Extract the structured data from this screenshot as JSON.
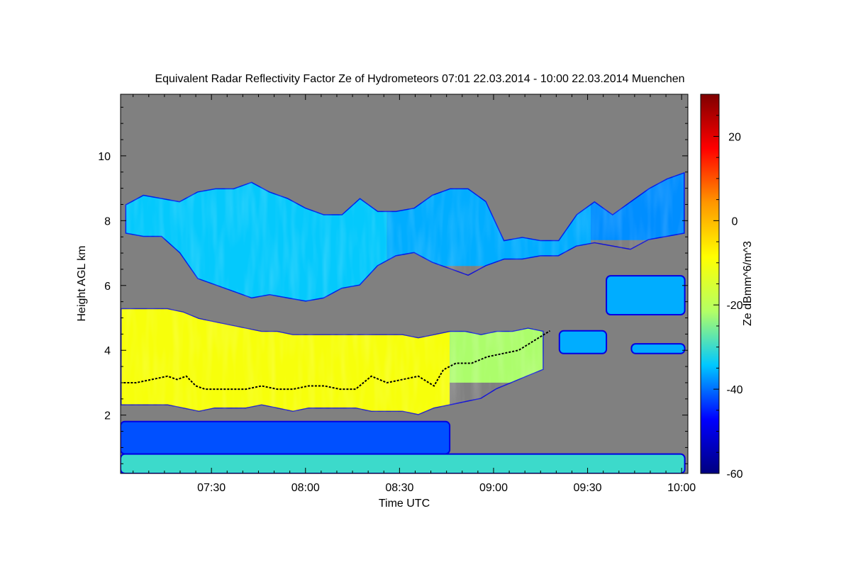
{
  "chart_data": {
    "type": "heatmap",
    "title": "Equivalent Radar Reflectivity Factor Ze of Hydrometeors   07:01 22.03.2014 - 10:00 22.03.2014 Muenchen",
    "xlabel": "Time UTC",
    "ylabel": "Height AGL km",
    "x_range_utc": [
      "07:01",
      "10:00"
    ],
    "xticks": [
      {
        "minutes": 30,
        "label": "07:30"
      },
      {
        "minutes": 60,
        "label": "08:00"
      },
      {
        "minutes": 90,
        "label": "08:30"
      },
      {
        "minutes": 120,
        "label": "09:00"
      },
      {
        "minutes": 150,
        "label": "09:30"
      },
      {
        "minutes": 180,
        "label": "10:00"
      }
    ],
    "ylim_km": [
      0.2,
      11.9
    ],
    "yticks": [
      {
        "value": 2,
        "label": "2"
      },
      {
        "value": 4,
        "label": "4"
      },
      {
        "value": 6,
        "label": "6"
      },
      {
        "value": 8,
        "label": "8"
      },
      {
        "value": 10,
        "label": "10"
      }
    ],
    "colorbar": {
      "label": "Ze dBmm^6/m^3",
      "range": [
        -60,
        30
      ],
      "ticks": [
        {
          "value": -60,
          "label": "-60"
        },
        {
          "value": -40,
          "label": "-40"
        },
        {
          "value": -20,
          "label": "-20"
        },
        {
          "value": 0,
          "label": "0"
        },
        {
          "value": 20,
          "label": "20"
        }
      ],
      "colors": [
        "#00007f",
        "#0000ff",
        "#00c8ff",
        "#b4ff64",
        "#ffff00",
        "#ff9600",
        "#ff0000",
        "#7f0000"
      ]
    },
    "background_color": "#808080",
    "layers": [
      {
        "name": "upper ice cloud",
        "segments": [
          {
            "start_min": 1.5,
            "end_min": 85,
            "base_km": 5.5,
            "top_km": 9.2,
            "ze_dbz": -34
          },
          {
            "start_min": 85,
            "end_min": 150,
            "base_km": 6.6,
            "top_km": 9.0,
            "ze_dbz": -36
          },
          {
            "start_min": 150,
            "end_min": 180,
            "base_km": 7.4,
            "top_km": 9.6,
            "ze_dbz": -38
          }
        ],
        "top_km": [
          8.5,
          8.8,
          8.7,
          8.6,
          8.9,
          9.0,
          9.0,
          9.2,
          8.9,
          8.7,
          8.4,
          8.2,
          8.2,
          8.7,
          8.3,
          8.3,
          8.4,
          8.8,
          9.0,
          9.0,
          8.6,
          7.4,
          7.5,
          7.4,
          7.4,
          8.2,
          8.6,
          8.2,
          8.6,
          9.0,
          9.3,
          9.5
        ],
        "base_km": [
          7.6,
          7.5,
          7.5,
          7.0,
          6.2,
          6.0,
          5.8,
          5.6,
          5.7,
          5.6,
          5.5,
          5.6,
          5.9,
          6.0,
          6.6,
          6.9,
          7.0,
          6.7,
          6.5,
          6.3,
          6.6,
          6.8,
          6.8,
          6.9,
          6.9,
          7.2,
          7.3,
          7.2,
          7.1,
          7.4,
          7.5,
          7.6
        ]
      },
      {
        "name": "lower mixed-phase cloud",
        "segments": [
          {
            "start_min": 0,
            "end_min": 105,
            "base_km": 2.0,
            "top_km": 5.3,
            "ze_dbz": -10
          },
          {
            "start_min": 105,
            "end_min": 135,
            "base_km": 3.0,
            "top_km": 4.7,
            "ze_dbz": -22
          }
        ],
        "top_km": [
          5.3,
          5.3,
          5.3,
          5.3,
          5.2,
          5.0,
          4.9,
          4.8,
          4.7,
          4.6,
          4.6,
          4.5,
          4.5,
          4.5,
          4.5,
          4.5,
          4.5,
          4.5,
          4.5,
          4.4,
          4.5,
          4.6,
          4.6,
          4.5,
          4.6,
          4.6,
          4.7,
          4.6
        ],
        "base_km": [
          2.3,
          2.3,
          2.3,
          2.3,
          2.2,
          2.1,
          2.2,
          2.2,
          2.2,
          2.3,
          2.2,
          2.1,
          2.2,
          2.2,
          2.2,
          2.2,
          2.1,
          2.1,
          2.1,
          2.0,
          2.2,
          2.3,
          2.4,
          2.5,
          2.8,
          3.0,
          3.2,
          3.4
        ]
      },
      {
        "name": "isolated echoes near 4-6 km",
        "segments": [
          {
            "start_min": 155,
            "end_min": 180,
            "base_km": 5.1,
            "top_km": 6.3,
            "ze_dbz": -36
          },
          {
            "start_min": 140,
            "end_min": 155,
            "base_km": 3.9,
            "top_km": 4.6,
            "ze_dbz": -36
          },
          {
            "start_min": 163,
            "end_min": 180,
            "base_km": 3.9,
            "top_km": 4.2,
            "ze_dbz": -36
          }
        ]
      },
      {
        "name": "near-surface clutter",
        "segments": [
          {
            "start_min": 0,
            "end_min": 180,
            "base_km": 0.2,
            "top_km": 0.8,
            "ze_dbz": -30
          },
          {
            "start_min": 0,
            "end_min": 105,
            "base_km": 0.8,
            "top_km": 1.8,
            "ze_dbz": -42
          }
        ]
      }
    ],
    "melting_layer_km": {
      "minutes": [
        1,
        5,
        10,
        15,
        18,
        21,
        24,
        27,
        30,
        35,
        40,
        45,
        50,
        55,
        60,
        65,
        70,
        75,
        80,
        85,
        90,
        95,
        100,
        103,
        107,
        112,
        117,
        122,
        127,
        132,
        137
      ],
      "height_km": [
        3.0,
        3.0,
        3.1,
        3.2,
        3.1,
        3.2,
        2.9,
        2.8,
        2.8,
        2.8,
        2.8,
        2.9,
        2.8,
        2.8,
        2.9,
        2.9,
        2.8,
        2.8,
        3.2,
        3.0,
        3.1,
        3.2,
        2.9,
        3.4,
        3.6,
        3.6,
        3.8,
        3.9,
        4.0,
        4.3,
        4.6
      ]
    }
  }
}
